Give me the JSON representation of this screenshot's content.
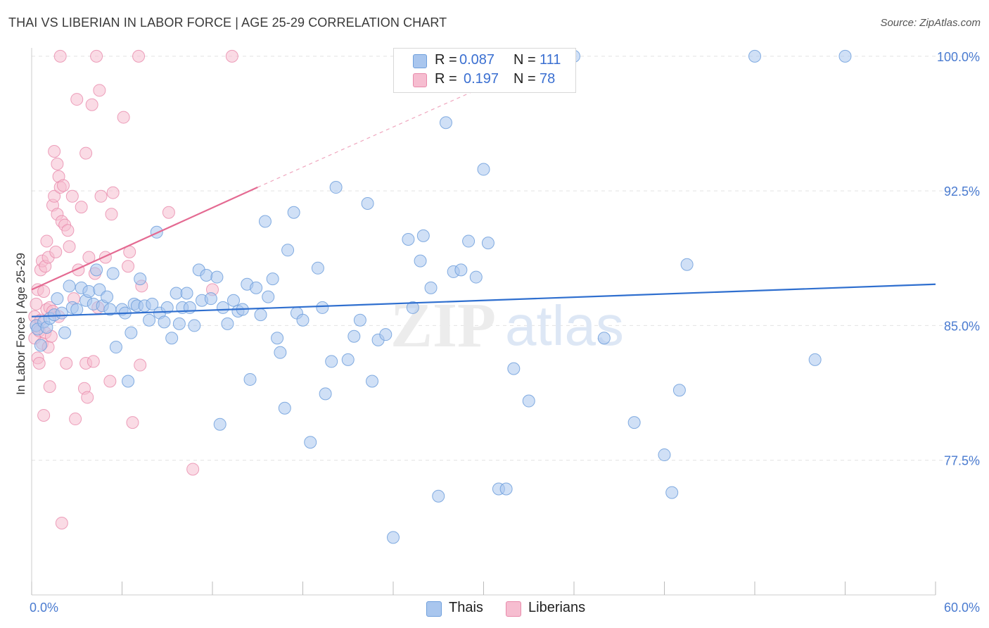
{
  "header": {
    "title": "THAI VS LIBERIAN IN LABOR FORCE | AGE 25-29 CORRELATION CHART",
    "source": "Source: ZipAtlas.com"
  },
  "legend": {
    "thai": {
      "r_label": "R =",
      "r_value": "0.087",
      "n_label": "N =",
      "n_value": "111"
    },
    "liberian": {
      "r_label": "R =",
      "r_value": "0.197",
      "n_label": "N =",
      "n_value": "78"
    }
  },
  "bottom_legend": {
    "thai": "Thais",
    "liberian": "Liberians"
  },
  "watermark": {
    "zip": "ZIP",
    "atlas": "atlas"
  },
  "colors": {
    "thai_fill": "#a9c6ee",
    "thai_stroke": "#6f9fdc",
    "thai_line": "#2f6fcf",
    "liberian_fill": "#f6bdd0",
    "liberian_stroke": "#e88aab",
    "liberian_line": "#e46a92",
    "tick_label": "#4a7bd0",
    "grid": "#e2e2e2"
  },
  "chart_data": {
    "type": "scatter",
    "title": "THAI VS LIBERIAN IN LABOR FORCE | AGE 25-29 CORRELATION CHART",
    "xlabel": "",
    "ylabel": "In Labor Force | Age 25-29",
    "xlim": [
      0,
      60
    ],
    "ylim": [
      70.0,
      100.7
    ],
    "x_tick_labels": [
      "0.0%",
      "60.0%"
    ],
    "y_ticks": [
      77.5,
      85.0,
      92.5,
      100.0
    ],
    "y_tick_labels": [
      "77.5%",
      "85.0%",
      "92.5%",
      "100.0%"
    ],
    "grid": "horizontal dashed",
    "legend_placement": "top-center",
    "series": [
      {
        "name": "Thais",
        "trend": {
          "x": [
            0,
            60
          ],
          "y": [
            85.5,
            87.3
          ]
        },
        "points": [
          [
            0.3,
            85.0
          ],
          [
            0.4,
            84.8
          ],
          [
            0.6,
            83.9
          ],
          [
            0.8,
            85.2
          ],
          [
            1.0,
            84.9
          ],
          [
            1.2,
            85.4
          ],
          [
            1.5,
            85.6
          ],
          [
            1.7,
            86.5
          ],
          [
            2.0,
            85.7
          ],
          [
            2.2,
            84.6
          ],
          [
            2.5,
            87.2
          ],
          [
            2.7,
            86.0
          ],
          [
            3.0,
            85.9
          ],
          [
            3.3,
            87.1
          ],
          [
            3.6,
            86.4
          ],
          [
            3.8,
            86.9
          ],
          [
            4.1,
            86.2
          ],
          [
            4.3,
            88.1
          ],
          [
            4.5,
            87.0
          ],
          [
            4.7,
            86.1
          ],
          [
            5.0,
            86.6
          ],
          [
            5.2,
            85.9
          ],
          [
            5.4,
            87.9
          ],
          [
            5.6,
            83.8
          ],
          [
            6.0,
            85.9
          ],
          [
            6.2,
            85.7
          ],
          [
            6.4,
            81.9
          ],
          [
            6.6,
            84.6
          ],
          [
            6.8,
            86.2
          ],
          [
            7.0,
            86.1
          ],
          [
            7.2,
            87.6
          ],
          [
            7.5,
            86.1
          ],
          [
            7.8,
            85.3
          ],
          [
            8.0,
            86.2
          ],
          [
            8.3,
            90.2
          ],
          [
            8.5,
            85.7
          ],
          [
            8.8,
            85.2
          ],
          [
            9.0,
            86.0
          ],
          [
            9.3,
            84.3
          ],
          [
            9.6,
            86.8
          ],
          [
            9.8,
            85.1
          ],
          [
            10.0,
            86.0
          ],
          [
            10.3,
            86.8
          ],
          [
            10.5,
            86.0
          ],
          [
            10.8,
            85.0
          ],
          [
            11.1,
            88.1
          ],
          [
            11.3,
            86.4
          ],
          [
            11.6,
            87.8
          ],
          [
            11.9,
            86.5
          ],
          [
            12.3,
            87.7
          ],
          [
            12.5,
            79.5
          ],
          [
            12.7,
            86.0
          ],
          [
            13.0,
            85.1
          ],
          [
            13.4,
            86.4
          ],
          [
            13.7,
            85.8
          ],
          [
            14.0,
            85.9
          ],
          [
            14.3,
            87.3
          ],
          [
            14.5,
            82.0
          ],
          [
            14.9,
            87.1
          ],
          [
            15.2,
            85.6
          ],
          [
            15.5,
            90.8
          ],
          [
            15.7,
            86.6
          ],
          [
            16.0,
            87.6
          ],
          [
            16.3,
            84.3
          ],
          [
            16.5,
            83.5
          ],
          [
            16.8,
            80.4
          ],
          [
            17.0,
            89.2
          ],
          [
            17.4,
            91.3
          ],
          [
            17.6,
            85.7
          ],
          [
            18.0,
            85.3
          ],
          [
            18.5,
            78.5
          ],
          [
            19.0,
            88.2
          ],
          [
            19.3,
            86.0
          ],
          [
            19.5,
            81.2
          ],
          [
            19.9,
            83.0
          ],
          [
            20.2,
            92.7
          ],
          [
            21.0,
            83.1
          ],
          [
            21.4,
            84.4
          ],
          [
            21.8,
            85.3
          ],
          [
            22.3,
            91.8
          ],
          [
            22.6,
            81.9
          ],
          [
            23.0,
            84.2
          ],
          [
            23.5,
            84.5
          ],
          [
            24.0,
            73.2
          ],
          [
            25.0,
            89.8
          ],
          [
            25.3,
            86.0
          ],
          [
            25.8,
            88.6
          ],
          [
            26.0,
            90.0
          ],
          [
            26.5,
            87.1
          ],
          [
            27.0,
            75.5
          ],
          [
            27.5,
            96.3
          ],
          [
            28.0,
            88.0
          ],
          [
            28.5,
            88.1
          ],
          [
            29.0,
            89.7
          ],
          [
            29.5,
            87.7
          ],
          [
            30.0,
            93.7
          ],
          [
            30.3,
            89.6
          ],
          [
            31.0,
            75.9
          ],
          [
            31.5,
            75.9
          ],
          [
            32.0,
            82.6
          ],
          [
            33.0,
            80.8
          ],
          [
            34.5,
            100.0
          ],
          [
            36.0,
            100.0
          ],
          [
            38.0,
            84.3
          ],
          [
            40.0,
            79.6
          ],
          [
            42.0,
            77.8
          ],
          [
            42.5,
            75.7
          ],
          [
            43.0,
            81.4
          ],
          [
            43.5,
            88.4
          ],
          [
            48.0,
            100.0
          ],
          [
            52.0,
            83.1
          ],
          [
            54.0,
            100.0
          ]
        ]
      },
      {
        "name": "Liberians",
        "trend": {
          "x": [
            0,
            15
          ],
          "y": [
            87.0,
            92.7
          ]
        },
        "trend_dashed": {
          "x": [
            15,
            30
          ],
          "y": [
            92.7,
            98.3
          ]
        },
        "points": [
          [
            0.2,
            85.5
          ],
          [
            0.2,
            84.3
          ],
          [
            0.3,
            86.2
          ],
          [
            0.3,
            85.0
          ],
          [
            0.4,
            83.2
          ],
          [
            0.4,
            87.0
          ],
          [
            0.5,
            84.7
          ],
          [
            0.5,
            82.9
          ],
          [
            0.6,
            88.1
          ],
          [
            0.6,
            85.3
          ],
          [
            0.7,
            88.6
          ],
          [
            0.7,
            84.0
          ],
          [
            0.8,
            80.0
          ],
          [
            0.8,
            86.9
          ],
          [
            0.9,
            84.6
          ],
          [
            0.9,
            88.3
          ],
          [
            1.0,
            89.7
          ],
          [
            1.0,
            85.9
          ],
          [
            1.1,
            88.8
          ],
          [
            1.1,
            83.8
          ],
          [
            1.2,
            81.6
          ],
          [
            1.2,
            86.0
          ],
          [
            1.3,
            84.4
          ],
          [
            1.4,
            85.8
          ],
          [
            1.4,
            91.7
          ],
          [
            1.5,
            94.7
          ],
          [
            1.5,
            92.2
          ],
          [
            1.6,
            89.1
          ],
          [
            1.7,
            94.0
          ],
          [
            1.7,
            91.2
          ],
          [
            1.8,
            93.3
          ],
          [
            1.8,
            85.5
          ],
          [
            1.9,
            92.7
          ],
          [
            2.0,
            74.0
          ],
          [
            2.0,
            90.8
          ],
          [
            2.1,
            92.8
          ],
          [
            2.2,
            90.6
          ],
          [
            2.3,
            82.9
          ],
          [
            2.4,
            90.3
          ],
          [
            2.5,
            89.4
          ],
          [
            2.7,
            92.2
          ],
          [
            2.8,
            86.5
          ],
          [
            2.9,
            79.8
          ],
          [
            3.0,
            97.6
          ],
          [
            3.1,
            88.1
          ],
          [
            3.3,
            91.6
          ],
          [
            3.5,
            81.5
          ],
          [
            3.6,
            82.9
          ],
          [
            3.6,
            94.6
          ],
          [
            3.7,
            81.0
          ],
          [
            3.8,
            88.8
          ],
          [
            4.0,
            97.3
          ],
          [
            4.1,
            83.0
          ],
          [
            4.2,
            87.9
          ],
          [
            4.4,
            86.0
          ],
          [
            4.5,
            98.1
          ],
          [
            4.6,
            92.2
          ],
          [
            4.9,
            88.8
          ],
          [
            5.2,
            81.9
          ],
          [
            5.3,
            91.2
          ],
          [
            5.4,
            92.4
          ],
          [
            6.1,
            96.6
          ],
          [
            6.4,
            88.3
          ],
          [
            6.5,
            89.1
          ],
          [
            6.7,
            79.6
          ],
          [
            7.2,
            82.8
          ],
          [
            7.3,
            87.2
          ],
          [
            9.1,
            91.3
          ],
          [
            10.7,
            77.0
          ],
          [
            12.0,
            87.0
          ],
          [
            1.9,
            100.0
          ],
          [
            4.3,
            100.0
          ],
          [
            7.1,
            100.0
          ],
          [
            13.3,
            100.0
          ]
        ]
      }
    ]
  }
}
